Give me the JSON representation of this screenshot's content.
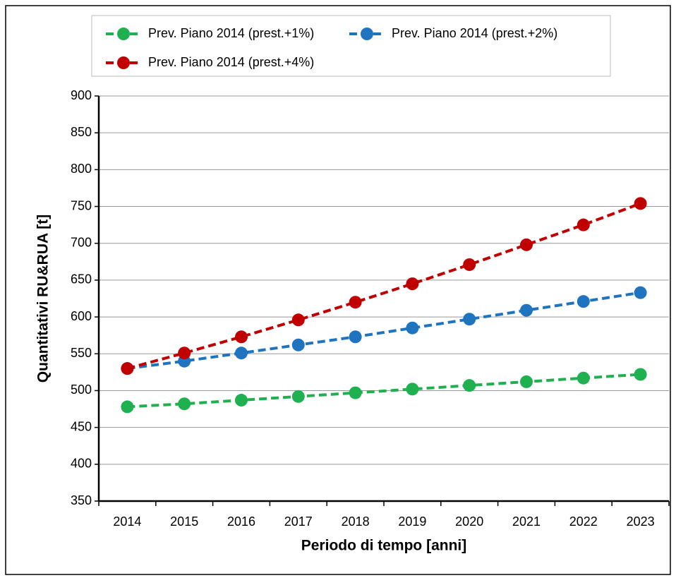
{
  "chart_data": {
    "type": "line",
    "xlabel": "Periodo di tempo   [anni]",
    "ylabel": "Quantitativi  RU&RUA  [t]",
    "categories": [
      "2014",
      "2015",
      "2016",
      "2017",
      "2018",
      "2019",
      "2020",
      "2021",
      "2022",
      "2023"
    ],
    "series": [
      {
        "name": "Prev. Piano 2014 (prest.+1%)",
        "color": "#1fb04f",
        "values": [
          478,
          482,
          487,
          492,
          497,
          502,
          507,
          512,
          517,
          522
        ]
      },
      {
        "name": "Prev. Piano 2014 (prest.+2%)",
        "color": "#1f74bf",
        "values": [
          530,
          540,
          551,
          562,
          573,
          585,
          597,
          609,
          621,
          633
        ]
      },
      {
        "name": "Prev. Piano 2014 (prest.+4%)",
        "color": "#c00000",
        "values": [
          530,
          551,
          573,
          596,
          620,
          645,
          671,
          698,
          725,
          754
        ]
      }
    ],
    "ylim": [
      350,
      900
    ],
    "yticks": [
      350,
      400,
      450,
      500,
      550,
      600,
      650,
      700,
      750,
      800,
      850,
      900
    ],
    "grid": true,
    "legend": "top"
  }
}
